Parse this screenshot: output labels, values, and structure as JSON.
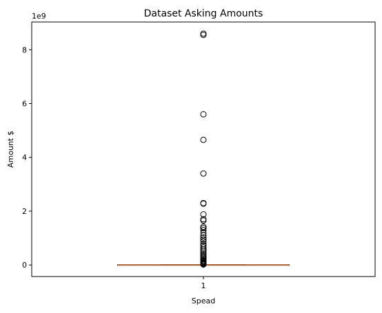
{
  "chart_data": {
    "type": "box",
    "title": "Dataset Asking Amounts",
    "xlabel": "Spead",
    "ylabel": "Amount $",
    "y_offset_label": "1e9",
    "categories": [
      "1"
    ],
    "yticks": [
      0,
      2,
      4,
      6,
      8
    ],
    "ylim": [
      -0.43,
      9.03
    ],
    "xlim": [
      0.5,
      1.5
    ],
    "box": {
      "whisker_low": 0.0,
      "q1": 0.0,
      "median": 0.0,
      "q3": 0.0,
      "whisker_high": 0.01
    },
    "median_color": "#e07b39",
    "outliers": [
      8.6,
      8.55,
      5.6,
      4.65,
      3.4,
      2.3,
      2.28,
      1.88,
      1.7,
      1.65,
      1.42,
      1.37,
      1.3,
      1.2,
      1.1,
      1.02,
      0.95,
      0.88,
      0.78,
      0.72,
      0.65,
      0.58,
      0.52,
      0.46,
      0.4,
      0.35,
      0.3,
      0.26,
      0.22,
      0.18,
      0.15,
      0.12,
      0.1,
      0.08,
      0.06,
      0.05,
      0.04,
      0.03,
      0.025,
      0.02
    ]
  }
}
